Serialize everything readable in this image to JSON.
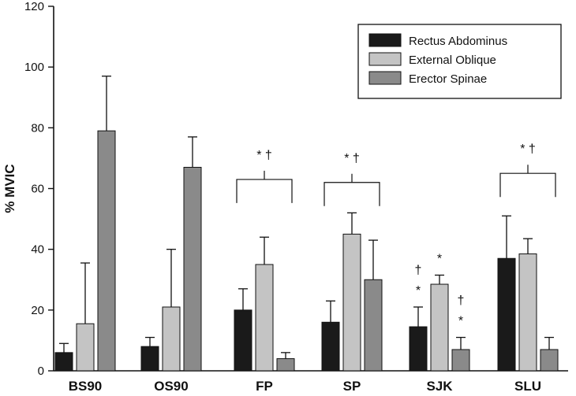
{
  "chart_data": {
    "type": "bar",
    "ylabel": "% MVIC",
    "ylim": [
      0,
      120
    ],
    "yticks": [
      0,
      20,
      40,
      60,
      80,
      100,
      120
    ],
    "categories": [
      "BS90",
      "OS90",
      "FP",
      "SP",
      "SJK",
      "SLU"
    ],
    "series": [
      {
        "name": "Rectus Abdominus",
        "color": "#1a1a1a",
        "values": [
          6,
          8,
          20,
          16,
          14.5,
          37
        ],
        "errors": [
          3,
          3,
          7,
          7,
          6.5,
          14
        ]
      },
      {
        "name": "External Oblique",
        "color": "#c4c4c4",
        "values": [
          15.5,
          21,
          35,
          45,
          28.5,
          38.5
        ],
        "errors": [
          20,
          19,
          9,
          7,
          3,
          5
        ]
      },
      {
        "name": "Erector Spinae",
        "color": "#8a8a8a",
        "values": [
          79,
          67,
          4,
          30,
          7,
          7
        ],
        "errors": [
          18,
          10,
          2,
          13,
          4,
          4
        ]
      }
    ],
    "legend_position": "top-right",
    "grid": false,
    "annotations": {
      "brackets": [
        {
          "category": "FP",
          "value": 63,
          "label": "* †"
        },
        {
          "category": "SP",
          "value": 62,
          "label": "* †"
        },
        {
          "category": "SLU",
          "value": 65,
          "label": "* †"
        }
      ],
      "bar_marks": [
        {
          "category": "SJK",
          "series": "Rectus Abdominus",
          "stack": [
            "*",
            "†"
          ]
        },
        {
          "category": "SJK",
          "series": "External Oblique",
          "stack": [
            "*"
          ]
        },
        {
          "category": "SJK",
          "series": "Erector Spinae",
          "stack": [
            "*",
            "†"
          ]
        }
      ]
    }
  }
}
